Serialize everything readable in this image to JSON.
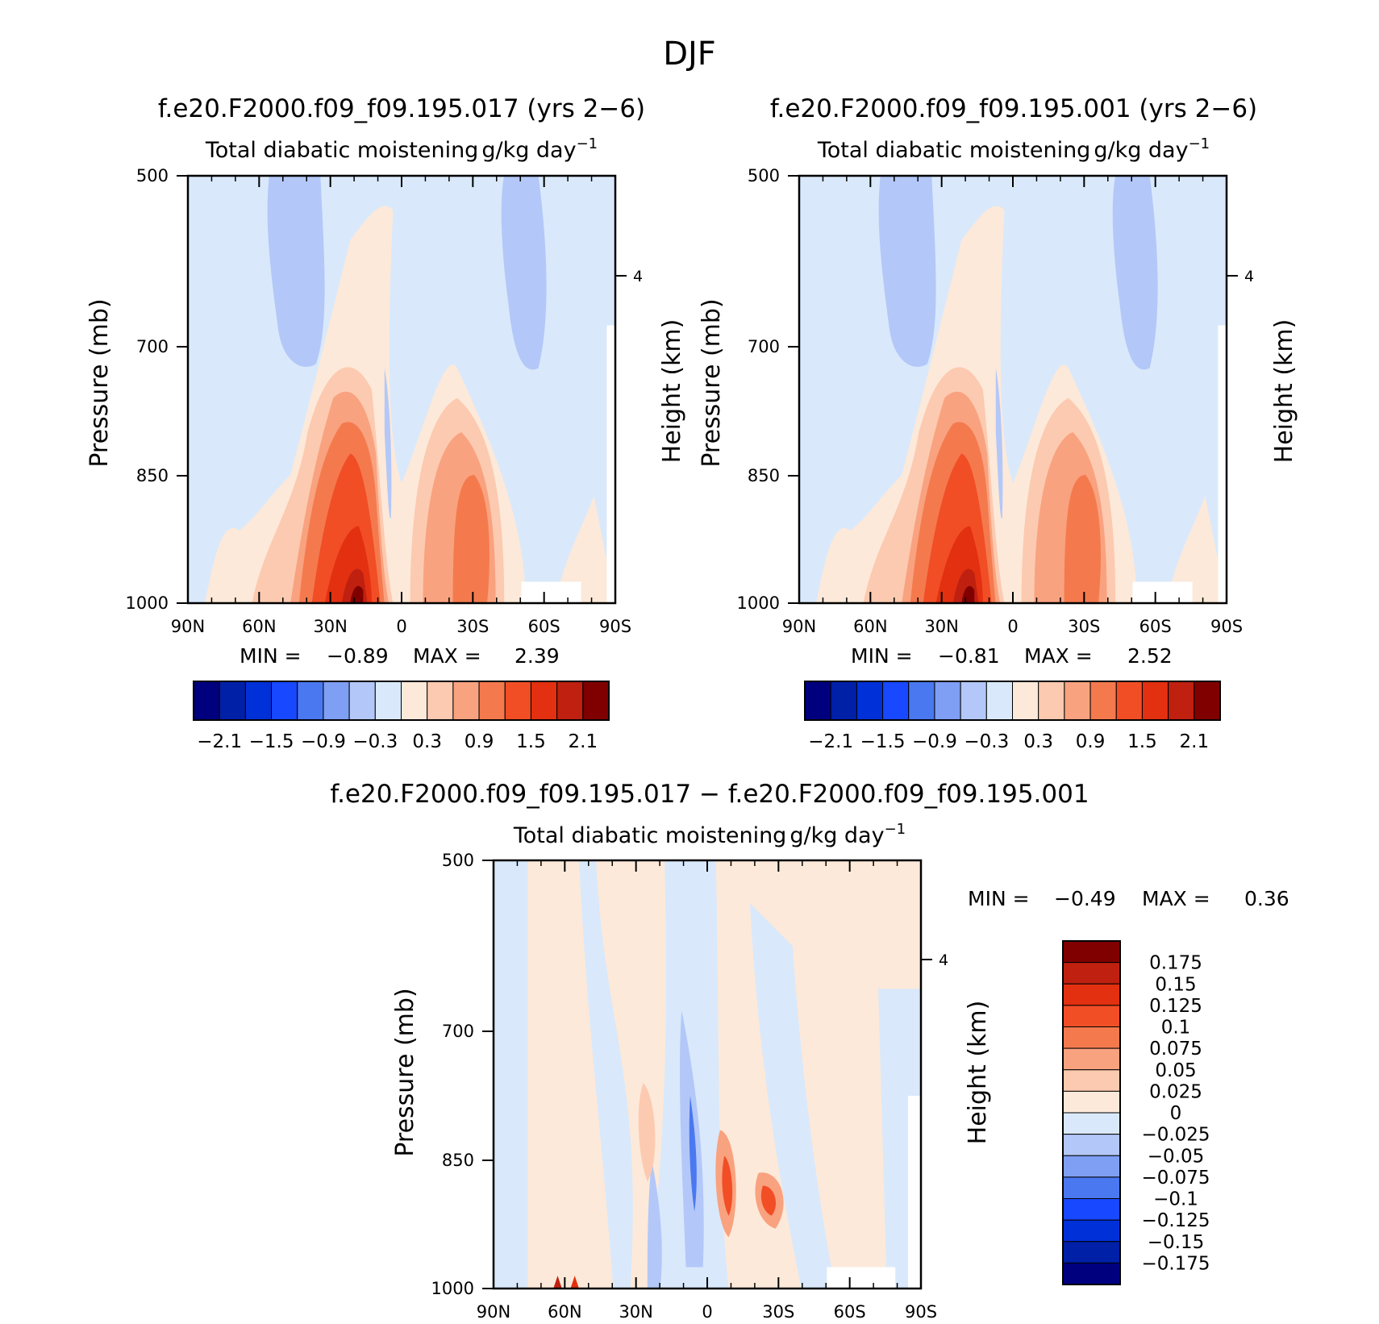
{
  "figure_title": "DJF",
  "chart_data": [
    {
      "type": "heatmap",
      "id": "p1",
      "title": "f.e20.F2000.f09_f09.195.017 (yrs 2−6)",
      "subtitle": "Total diabatic moistening",
      "unit_base": "g/kg day",
      "unit_exp": "−1",
      "ylabel": "Pressure (mb)",
      "y2label": "Height (km)",
      "x_tick_labels": [
        "90N",
        "60N",
        "30N",
        "0",
        "30S",
        "60S",
        "90S"
      ],
      "y_tick_labels": [
        "500",
        "700",
        "850",
        "1000"
      ],
      "y2_tick_labels": [
        "4"
      ],
      "min_label": "MIN =",
      "min_value": "−0.89",
      "max_label": "MAX =",
      "max_value": "2.39",
      "colorbar_labels": [
        "−2.1",
        "−1.5",
        "−0.9",
        "−0.3",
        "0.3",
        "0.9",
        "1.5",
        "2.1"
      ],
      "features": [
        {
          "lat": 20,
          "p": 1000,
          "value": 2.39
        },
        {
          "lat": 20,
          "p": 870,
          "value": 1.5
        },
        {
          "lat": -30,
          "p": 880,
          "value": 1.0
        },
        {
          "lat": 3,
          "p": 800,
          "value": -0.6
        },
        {
          "lat": 55,
          "p": 600,
          "value": -0.5
        },
        {
          "lat": -45,
          "p": 600,
          "value": -0.5
        }
      ]
    },
    {
      "type": "heatmap",
      "id": "p2",
      "title": "f.e20.F2000.f09_f09.195.001 (yrs 2−6)",
      "subtitle": "Total diabatic moistening",
      "unit_base": "g/kg day",
      "unit_exp": "−1",
      "ylabel": "Pressure (mb)",
      "y2label": "Height (km)",
      "x_tick_labels": [
        "90N",
        "60N",
        "30N",
        "0",
        "30S",
        "60S",
        "90S"
      ],
      "y_tick_labels": [
        "500",
        "700",
        "850",
        "1000"
      ],
      "y2_tick_labels": [
        "4"
      ],
      "min_label": "MIN =",
      "min_value": "−0.81",
      "max_label": "MAX =",
      "max_value": "2.52",
      "colorbar_labels": [
        "−2.1",
        "−1.5",
        "−0.9",
        "−0.3",
        "0.3",
        "0.9",
        "1.5",
        "2.1"
      ],
      "features": [
        {
          "lat": 20,
          "p": 1000,
          "value": 2.52
        },
        {
          "lat": 20,
          "p": 860,
          "value": 1.6
        },
        {
          "lat": -30,
          "p": 880,
          "value": 1.0
        },
        {
          "lat": 5,
          "p": 800,
          "value": -0.6
        },
        {
          "lat": 55,
          "p": 600,
          "value": -0.5
        },
        {
          "lat": -45,
          "p": 600,
          "value": -0.5
        }
      ]
    },
    {
      "type": "heatmap",
      "id": "p3",
      "title": "f.e20.F2000.f09_f09.195.017 − f.e20.F2000.f09_f09.195.001",
      "subtitle": "Total diabatic moistening",
      "unit_base": "g/kg day",
      "unit_exp": "−1",
      "ylabel": "Pressure (mb)",
      "y2label": "Height (km)",
      "x_tick_labels": [
        "90N",
        "60N",
        "30N",
        "0",
        "30S",
        "60S",
        "90S"
      ],
      "y_tick_labels": [
        "500",
        "700",
        "850",
        "1000"
      ],
      "y2_tick_labels": [
        "4"
      ],
      "min_label": "MIN =",
      "min_value": "−0.49",
      "max_label": "MAX =",
      "max_value": "0.36",
      "colorbar_labels": [
        "0.175",
        "0.15",
        "0.125",
        "0.1",
        "0.075",
        "0.05",
        "0.025",
        "0",
        "−0.025",
        "−0.05",
        "−0.075",
        "−0.1",
        "−0.125",
        "−0.15",
        "−0.175"
      ],
      "features": [
        {
          "lat": -10,
          "p": 880,
          "value": 0.3
        },
        {
          "lat": -32,
          "p": 900,
          "value": 0.2
        },
        {
          "lat": 0,
          "p": 850,
          "value": -0.15
        },
        {
          "lat": 20,
          "p": 800,
          "value": 0.1
        }
      ]
    }
  ],
  "colors": {
    "colorbar_16": [
      "#00007f",
      "#0020a8",
      "#0030d8",
      "#1848ff",
      "#4a78f0",
      "#7f9ff4",
      "#b3c8f8",
      "#d9e9fb",
      "#fde9d9",
      "#fccab0",
      "#f9a27f",
      "#f47a4e",
      "#f14e26",
      "#e23010",
      "#bf2010",
      "#800000"
    ],
    "colorbar_16_diff": [
      "#00007f",
      "#0020a8",
      "#0030d8",
      "#1848ff",
      "#4a78f0",
      "#7f9ff4",
      "#b3c8f8",
      "#d9e9fb",
      "#fde9d9",
      "#fccab0",
      "#f9a27f",
      "#f47a4e",
      "#f14e26",
      "#e23010",
      "#bf2010",
      "#800000"
    ]
  }
}
